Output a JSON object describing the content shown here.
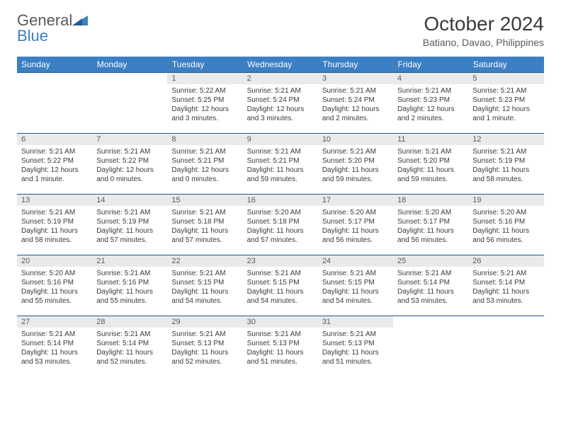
{
  "logo": {
    "part1": "General",
    "part2": "Blue"
  },
  "title": "October 2024",
  "location": "Batiano, Davao, Philippines",
  "colors": {
    "header_bg": "#3b7fc4",
    "header_text": "#ffffff",
    "daynum_bg": "#e9eaeb",
    "row_divider": "#1f5b8f",
    "logo_blue": "#3b7fc4",
    "text": "#3a3a3a"
  },
  "weekdays": [
    "Sunday",
    "Monday",
    "Tuesday",
    "Wednesday",
    "Thursday",
    "Friday",
    "Saturday"
  ],
  "weeks": [
    [
      null,
      null,
      {
        "n": "1",
        "sr": "Sunrise: 5:22 AM",
        "ss": "Sunset: 5:25 PM",
        "dl": "Daylight: 12 hours and 3 minutes."
      },
      {
        "n": "2",
        "sr": "Sunrise: 5:21 AM",
        "ss": "Sunset: 5:24 PM",
        "dl": "Daylight: 12 hours and 3 minutes."
      },
      {
        "n": "3",
        "sr": "Sunrise: 5:21 AM",
        "ss": "Sunset: 5:24 PM",
        "dl": "Daylight: 12 hours and 2 minutes."
      },
      {
        "n": "4",
        "sr": "Sunrise: 5:21 AM",
        "ss": "Sunset: 5:23 PM",
        "dl": "Daylight: 12 hours and 2 minutes."
      },
      {
        "n": "5",
        "sr": "Sunrise: 5:21 AM",
        "ss": "Sunset: 5:23 PM",
        "dl": "Daylight: 12 hours and 1 minute."
      }
    ],
    [
      {
        "n": "6",
        "sr": "Sunrise: 5:21 AM",
        "ss": "Sunset: 5:22 PM",
        "dl": "Daylight: 12 hours and 1 minute."
      },
      {
        "n": "7",
        "sr": "Sunrise: 5:21 AM",
        "ss": "Sunset: 5:22 PM",
        "dl": "Daylight: 12 hours and 0 minutes."
      },
      {
        "n": "8",
        "sr": "Sunrise: 5:21 AM",
        "ss": "Sunset: 5:21 PM",
        "dl": "Daylight: 12 hours and 0 minutes."
      },
      {
        "n": "9",
        "sr": "Sunrise: 5:21 AM",
        "ss": "Sunset: 5:21 PM",
        "dl": "Daylight: 11 hours and 59 minutes."
      },
      {
        "n": "10",
        "sr": "Sunrise: 5:21 AM",
        "ss": "Sunset: 5:20 PM",
        "dl": "Daylight: 11 hours and 59 minutes."
      },
      {
        "n": "11",
        "sr": "Sunrise: 5:21 AM",
        "ss": "Sunset: 5:20 PM",
        "dl": "Daylight: 11 hours and 59 minutes."
      },
      {
        "n": "12",
        "sr": "Sunrise: 5:21 AM",
        "ss": "Sunset: 5:19 PM",
        "dl": "Daylight: 11 hours and 58 minutes."
      }
    ],
    [
      {
        "n": "13",
        "sr": "Sunrise: 5:21 AM",
        "ss": "Sunset: 5:19 PM",
        "dl": "Daylight: 11 hours and 58 minutes."
      },
      {
        "n": "14",
        "sr": "Sunrise: 5:21 AM",
        "ss": "Sunset: 5:19 PM",
        "dl": "Daylight: 11 hours and 57 minutes."
      },
      {
        "n": "15",
        "sr": "Sunrise: 5:21 AM",
        "ss": "Sunset: 5:18 PM",
        "dl": "Daylight: 11 hours and 57 minutes."
      },
      {
        "n": "16",
        "sr": "Sunrise: 5:20 AM",
        "ss": "Sunset: 5:18 PM",
        "dl": "Daylight: 11 hours and 57 minutes."
      },
      {
        "n": "17",
        "sr": "Sunrise: 5:20 AM",
        "ss": "Sunset: 5:17 PM",
        "dl": "Daylight: 11 hours and 56 minutes."
      },
      {
        "n": "18",
        "sr": "Sunrise: 5:20 AM",
        "ss": "Sunset: 5:17 PM",
        "dl": "Daylight: 11 hours and 56 minutes."
      },
      {
        "n": "19",
        "sr": "Sunrise: 5:20 AM",
        "ss": "Sunset: 5:16 PM",
        "dl": "Daylight: 11 hours and 56 minutes."
      }
    ],
    [
      {
        "n": "20",
        "sr": "Sunrise: 5:20 AM",
        "ss": "Sunset: 5:16 PM",
        "dl": "Daylight: 11 hours and 55 minutes."
      },
      {
        "n": "21",
        "sr": "Sunrise: 5:21 AM",
        "ss": "Sunset: 5:16 PM",
        "dl": "Daylight: 11 hours and 55 minutes."
      },
      {
        "n": "22",
        "sr": "Sunrise: 5:21 AM",
        "ss": "Sunset: 5:15 PM",
        "dl": "Daylight: 11 hours and 54 minutes."
      },
      {
        "n": "23",
        "sr": "Sunrise: 5:21 AM",
        "ss": "Sunset: 5:15 PM",
        "dl": "Daylight: 11 hours and 54 minutes."
      },
      {
        "n": "24",
        "sr": "Sunrise: 5:21 AM",
        "ss": "Sunset: 5:15 PM",
        "dl": "Daylight: 11 hours and 54 minutes."
      },
      {
        "n": "25",
        "sr": "Sunrise: 5:21 AM",
        "ss": "Sunset: 5:14 PM",
        "dl": "Daylight: 11 hours and 53 minutes."
      },
      {
        "n": "26",
        "sr": "Sunrise: 5:21 AM",
        "ss": "Sunset: 5:14 PM",
        "dl": "Daylight: 11 hours and 53 minutes."
      }
    ],
    [
      {
        "n": "27",
        "sr": "Sunrise: 5:21 AM",
        "ss": "Sunset: 5:14 PM",
        "dl": "Daylight: 11 hours and 53 minutes."
      },
      {
        "n": "28",
        "sr": "Sunrise: 5:21 AM",
        "ss": "Sunset: 5:14 PM",
        "dl": "Daylight: 11 hours and 52 minutes."
      },
      {
        "n": "29",
        "sr": "Sunrise: 5:21 AM",
        "ss": "Sunset: 5:13 PM",
        "dl": "Daylight: 11 hours and 52 minutes."
      },
      {
        "n": "30",
        "sr": "Sunrise: 5:21 AM",
        "ss": "Sunset: 5:13 PM",
        "dl": "Daylight: 11 hours and 51 minutes."
      },
      {
        "n": "31",
        "sr": "Sunrise: 5:21 AM",
        "ss": "Sunset: 5:13 PM",
        "dl": "Daylight: 11 hours and 51 minutes."
      },
      null,
      null
    ]
  ]
}
